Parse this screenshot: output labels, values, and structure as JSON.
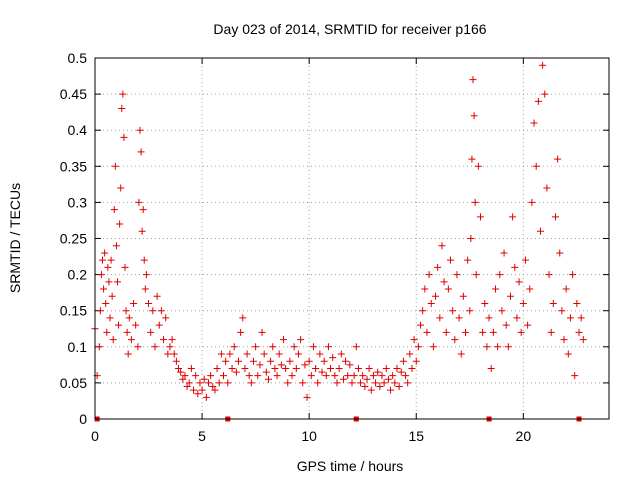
{
  "chart_data": {
    "type": "scatter",
    "title": "Day 023 of 2014, SRMTID for receiver p166",
    "xlabel": "GPS time / hours",
    "ylabel": "SRMTID / TECUs",
    "xlim": [
      0,
      24
    ],
    "ylim": [
      0,
      0.5
    ],
    "x_ticks": [
      0,
      5,
      10,
      15,
      20
    ],
    "x_tick_labels": [
      "0",
      "5",
      "10",
      "15",
      "20"
    ],
    "y_ticks": [
      0,
      0.05,
      0.1,
      0.15,
      0.2,
      0.25,
      0.3,
      0.35,
      0.4,
      0.45,
      0.5
    ],
    "y_tick_labels": [
      "0",
      "0.05",
      "0.1",
      "0.15",
      "0.2",
      "0.25",
      "0.3",
      "0.35",
      "0.4",
      "0.45",
      "0.5"
    ],
    "grid": true,
    "marker": "plus",
    "color": "#e00000",
    "gap_markers_x": [
      0.1,
      6.2,
      12.2,
      18.4,
      22.6
    ],
    "series": [
      {
        "name": "SRMTID",
        "points": [
          [
            0.0,
            0.125
          ],
          [
            0.1,
            0.06
          ],
          [
            0.2,
            0.1
          ],
          [
            0.25,
            0.15
          ],
          [
            0.3,
            0.2
          ],
          [
            0.35,
            0.22
          ],
          [
            0.4,
            0.18
          ],
          [
            0.45,
            0.23
          ],
          [
            0.5,
            0.16
          ],
          [
            0.55,
            0.12
          ],
          [
            0.6,
            0.21
          ],
          [
            0.65,
            0.19
          ],
          [
            0.7,
            0.14
          ],
          [
            0.75,
            0.22
          ],
          [
            0.8,
            0.17
          ],
          [
            0.85,
            0.11
          ],
          [
            0.9,
            0.29
          ],
          [
            0.95,
            0.35
          ],
          [
            1.0,
            0.24
          ],
          [
            1.05,
            0.19
          ],
          [
            1.1,
            0.13
          ],
          [
            1.15,
            0.27
          ],
          [
            1.2,
            0.32
          ],
          [
            1.25,
            0.43
          ],
          [
            1.3,
            0.45
          ],
          [
            1.35,
            0.39
          ],
          [
            1.4,
            0.21
          ],
          [
            1.45,
            0.15
          ],
          [
            1.5,
            0.12
          ],
          [
            1.55,
            0.09
          ],
          [
            1.6,
            0.14
          ],
          [
            1.7,
            0.11
          ],
          [
            1.8,
            0.16
          ],
          [
            1.9,
            0.13
          ],
          [
            2.0,
            0.1
          ],
          [
            2.05,
            0.3
          ],
          [
            2.1,
            0.4
          ],
          [
            2.15,
            0.37
          ],
          [
            2.2,
            0.26
          ],
          [
            2.25,
            0.29
          ],
          [
            2.3,
            0.22
          ],
          [
            2.35,
            0.18
          ],
          [
            2.4,
            0.2
          ],
          [
            2.5,
            0.16
          ],
          [
            2.6,
            0.12
          ],
          [
            2.7,
            0.15
          ],
          [
            2.8,
            0.1
          ],
          [
            2.9,
            0.17
          ],
          [
            3.0,
            0.13
          ],
          [
            3.1,
            0.15
          ],
          [
            3.2,
            0.11
          ],
          [
            3.3,
            0.14
          ],
          [
            3.4,
            0.09
          ],
          [
            3.5,
            0.1
          ],
          [
            3.6,
            0.11
          ],
          [
            3.7,
            0.09
          ],
          [
            3.8,
            0.08
          ],
          [
            3.9,
            0.07
          ],
          [
            4.0,
            0.065
          ],
          [
            4.1,
            0.055
          ],
          [
            4.2,
            0.06
          ],
          [
            4.3,
            0.045
          ],
          [
            4.4,
            0.05
          ],
          [
            4.5,
            0.07
          ],
          [
            4.6,
            0.04
          ],
          [
            4.7,
            0.06
          ],
          [
            4.8,
            0.035
          ],
          [
            4.9,
            0.05
          ],
          [
            5.0,
            0.04
          ],
          [
            5.1,
            0.055
          ],
          [
            5.2,
            0.03
          ],
          [
            5.3,
            0.05
          ],
          [
            5.4,
            0.06
          ],
          [
            5.5,
            0.045
          ],
          [
            5.6,
            0.04
          ],
          [
            5.7,
            0.07
          ],
          [
            5.8,
            0.05
          ],
          [
            5.9,
            0.09
          ],
          [
            6.0,
            0.06
          ],
          [
            6.1,
            0.08
          ],
          [
            6.2,
            0.05
          ],
          [
            6.3,
            0.09
          ],
          [
            6.4,
            0.07
          ],
          [
            6.5,
            0.1
          ],
          [
            6.6,
            0.065
          ],
          [
            6.7,
            0.08
          ],
          [
            6.8,
            0.12
          ],
          [
            6.9,
            0.14
          ],
          [
            7.0,
            0.07
          ],
          [
            7.1,
            0.09
          ],
          [
            7.2,
            0.06
          ],
          [
            7.3,
            0.05
          ],
          [
            7.4,
            0.08
          ],
          [
            7.5,
            0.1
          ],
          [
            7.6,
            0.06
          ],
          [
            7.7,
            0.075
          ],
          [
            7.8,
            0.12
          ],
          [
            7.9,
            0.09
          ],
          [
            8.0,
            0.065
          ],
          [
            8.1,
            0.055
          ],
          [
            8.2,
            0.08
          ],
          [
            8.3,
            0.1
          ],
          [
            8.4,
            0.07
          ],
          [
            8.5,
            0.06
          ],
          [
            8.6,
            0.09
          ],
          [
            8.7,
            0.075
          ],
          [
            8.8,
            0.11
          ],
          [
            8.9,
            0.07
          ],
          [
            9.0,
            0.05
          ],
          [
            9.1,
            0.08
          ],
          [
            9.2,
            0.06
          ],
          [
            9.3,
            0.1
          ],
          [
            9.4,
            0.07
          ],
          [
            9.5,
            0.09
          ],
          [
            9.6,
            0.11
          ],
          [
            9.7,
            0.05
          ],
          [
            9.8,
            0.075
          ],
          [
            9.9,
            0.03
          ],
          [
            10.0,
            0.08
          ],
          [
            10.1,
            0.06
          ],
          [
            10.2,
            0.1
          ],
          [
            10.3,
            0.07
          ],
          [
            10.4,
            0.05
          ],
          [
            10.5,
            0.09
          ],
          [
            10.6,
            0.065
          ],
          [
            10.7,
            0.08
          ],
          [
            10.8,
            0.06
          ],
          [
            10.9,
            0.1
          ],
          [
            11.0,
            0.07
          ],
          [
            11.1,
            0.085
          ],
          [
            11.2,
            0.06
          ],
          [
            11.3,
            0.05
          ],
          [
            11.4,
            0.07
          ],
          [
            11.5,
            0.09
          ],
          [
            11.6,
            0.055
          ],
          [
            11.7,
            0.08
          ],
          [
            11.8,
            0.06
          ],
          [
            11.9,
            0.075
          ],
          [
            12.0,
            0.05
          ],
          [
            12.1,
            0.06
          ],
          [
            12.2,
            0.1
          ],
          [
            12.3,
            0.07
          ],
          [
            12.4,
            0.05
          ],
          [
            12.5,
            0.06
          ],
          [
            12.6,
            0.045
          ],
          [
            12.7,
            0.055
          ],
          [
            12.8,
            0.07
          ],
          [
            12.9,
            0.04
          ],
          [
            13.0,
            0.06
          ],
          [
            13.1,
            0.05
          ],
          [
            13.2,
            0.065
          ],
          [
            13.3,
            0.045
          ],
          [
            13.4,
            0.06
          ],
          [
            13.5,
            0.05
          ],
          [
            13.6,
            0.07
          ],
          [
            13.7,
            0.055
          ],
          [
            13.8,
            0.04
          ],
          [
            13.9,
            0.06
          ],
          [
            14.0,
            0.05
          ],
          [
            14.1,
            0.07
          ],
          [
            14.2,
            0.045
          ],
          [
            14.3,
            0.065
          ],
          [
            14.4,
            0.08
          ],
          [
            14.5,
            0.06
          ],
          [
            14.6,
            0.05
          ],
          [
            14.7,
            0.09
          ],
          [
            14.8,
            0.07
          ],
          [
            14.9,
            0.11
          ],
          [
            15.0,
            0.08
          ],
          [
            15.1,
            0.1
          ],
          [
            15.2,
            0.13
          ],
          [
            15.3,
            0.15
          ],
          [
            15.4,
            0.18
          ],
          [
            15.5,
            0.12
          ],
          [
            15.6,
            0.2
          ],
          [
            15.7,
            0.16
          ],
          [
            15.8,
            0.1
          ],
          [
            15.9,
            0.17
          ],
          [
            16.0,
            0.21
          ],
          [
            16.1,
            0.14
          ],
          [
            16.2,
            0.24
          ],
          [
            16.3,
            0.19
          ],
          [
            16.4,
            0.12
          ],
          [
            16.5,
            0.18
          ],
          [
            16.6,
            0.22
          ],
          [
            16.7,
            0.15
          ],
          [
            16.8,
            0.11
          ],
          [
            16.9,
            0.2
          ],
          [
            17.0,
            0.14
          ],
          [
            17.1,
            0.09
          ],
          [
            17.2,
            0.17
          ],
          [
            17.3,
            0.12
          ],
          [
            17.4,
            0.22
          ],
          [
            17.5,
            0.15
          ],
          [
            17.55,
            0.25
          ],
          [
            17.6,
            0.36
          ],
          [
            17.65,
            0.47
          ],
          [
            17.7,
            0.42
          ],
          [
            17.75,
            0.3
          ],
          [
            17.8,
            0.2
          ],
          [
            17.9,
            0.35
          ],
          [
            18.0,
            0.28
          ],
          [
            18.1,
            0.12
          ],
          [
            18.2,
            0.16
          ],
          [
            18.3,
            0.1
          ],
          [
            18.4,
            0.14
          ],
          [
            18.5,
            0.07
          ],
          [
            18.6,
            0.12
          ],
          [
            18.7,
            0.18
          ],
          [
            18.8,
            0.1
          ],
          [
            18.9,
            0.2
          ],
          [
            19.0,
            0.15
          ],
          [
            19.1,
            0.23
          ],
          [
            19.2,
            0.13
          ],
          [
            19.3,
            0.1
          ],
          [
            19.4,
            0.17
          ],
          [
            19.5,
            0.28
          ],
          [
            19.6,
            0.21
          ],
          [
            19.7,
            0.14
          ],
          [
            19.8,
            0.19
          ],
          [
            19.9,
            0.12
          ],
          [
            20.0,
            0.16
          ],
          [
            20.1,
            0.22
          ],
          [
            20.2,
            0.13
          ],
          [
            20.3,
            0.18
          ],
          [
            20.4,
            0.3
          ],
          [
            20.5,
            0.41
          ],
          [
            20.6,
            0.35
          ],
          [
            20.7,
            0.44
          ],
          [
            20.8,
            0.26
          ],
          [
            20.9,
            0.49
          ],
          [
            21.0,
            0.45
          ],
          [
            21.1,
            0.32
          ],
          [
            21.2,
            0.2
          ],
          [
            21.3,
            0.12
          ],
          [
            21.4,
            0.16
          ],
          [
            21.5,
            0.28
          ],
          [
            21.6,
            0.36
          ],
          [
            21.7,
            0.23
          ],
          [
            21.8,
            0.15
          ],
          [
            21.9,
            0.11
          ],
          [
            22.0,
            0.18
          ],
          [
            22.1,
            0.09
          ],
          [
            22.2,
            0.14
          ],
          [
            22.3,
            0.2
          ],
          [
            22.4,
            0.06
          ],
          [
            22.5,
            0.16
          ],
          [
            22.6,
            0.12
          ],
          [
            22.7,
            0.14
          ],
          [
            22.8,
            0.11
          ]
        ]
      }
    ]
  }
}
